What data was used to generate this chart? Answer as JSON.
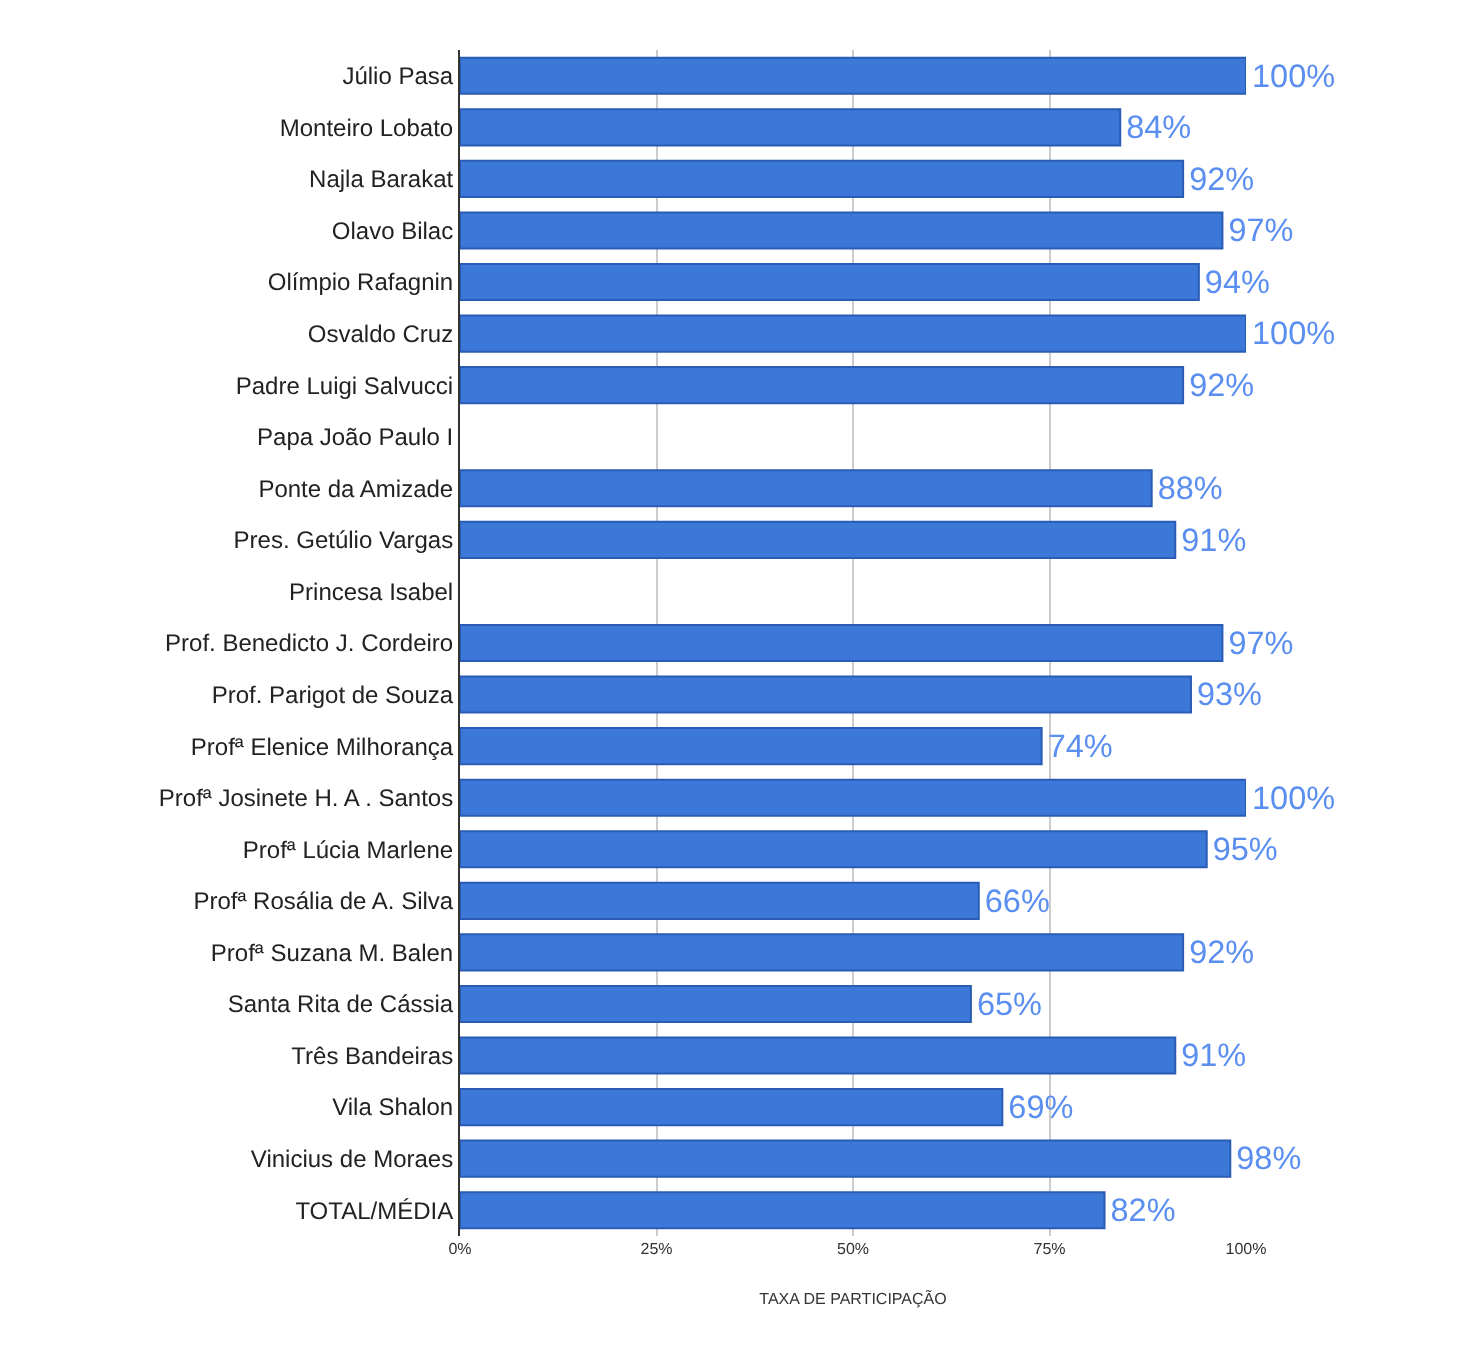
{
  "chart_data": {
    "type": "bar",
    "orientation": "horizontal",
    "xlabel": "TAXA DE PARTICIPAÇÃO",
    "categories": [
      "Júlio Pasa",
      "Monteiro Lobato",
      "Najla Barakat",
      "Olavo Bilac",
      "Olímpio Rafagnin",
      "Osvaldo Cruz",
      "Padre Luigi Salvucci",
      "Papa João Paulo I",
      "Ponte da Amizade",
      "Pres. Getúlio Vargas",
      "Princesa Isabel",
      "Prof. Benedicto J. Cordeiro",
      "Prof. Parigot de Souza",
      "Profª Elenice Milhorança",
      "Profª Josinete H. A . Santos",
      "Profª Lúcia Marlene",
      "Profª Rosália de A. Silva",
      "Profª Suzana M. Balen",
      "Santa Rita de Cássia",
      "Três Bandeiras",
      "Vila Shalon",
      "Vinicius de Moraes",
      "TOTAL/MÉDIA"
    ],
    "values": [
      100,
      84,
      92,
      97,
      94,
      100,
      92,
      null,
      88,
      91,
      null,
      97,
      93,
      74,
      100,
      95,
      66,
      92,
      65,
      91,
      69,
      98,
      82
    ],
    "value_labels": [
      "100%",
      "84%",
      "92%",
      "97%",
      "94%",
      "100%",
      "92%",
      null,
      "88%",
      "91%",
      null,
      "97%",
      "93%",
      "74%",
      "100%",
      "95%",
      "66%",
      "92%",
      "65%",
      "91%",
      "69%",
      "98%",
      "82%"
    ],
    "color": "#3c78d8",
    "xlim": [
      0,
      100
    ],
    "xticks": [
      {
        "value": 0,
        "label": "0%"
      },
      {
        "value": 25,
        "label": "25%"
      },
      {
        "value": 50,
        "label": "50%"
      },
      {
        "value": 75,
        "label": "75%"
      },
      {
        "value": 100,
        "label": "100%"
      }
    ],
    "grid": "x",
    "legend": false
  }
}
